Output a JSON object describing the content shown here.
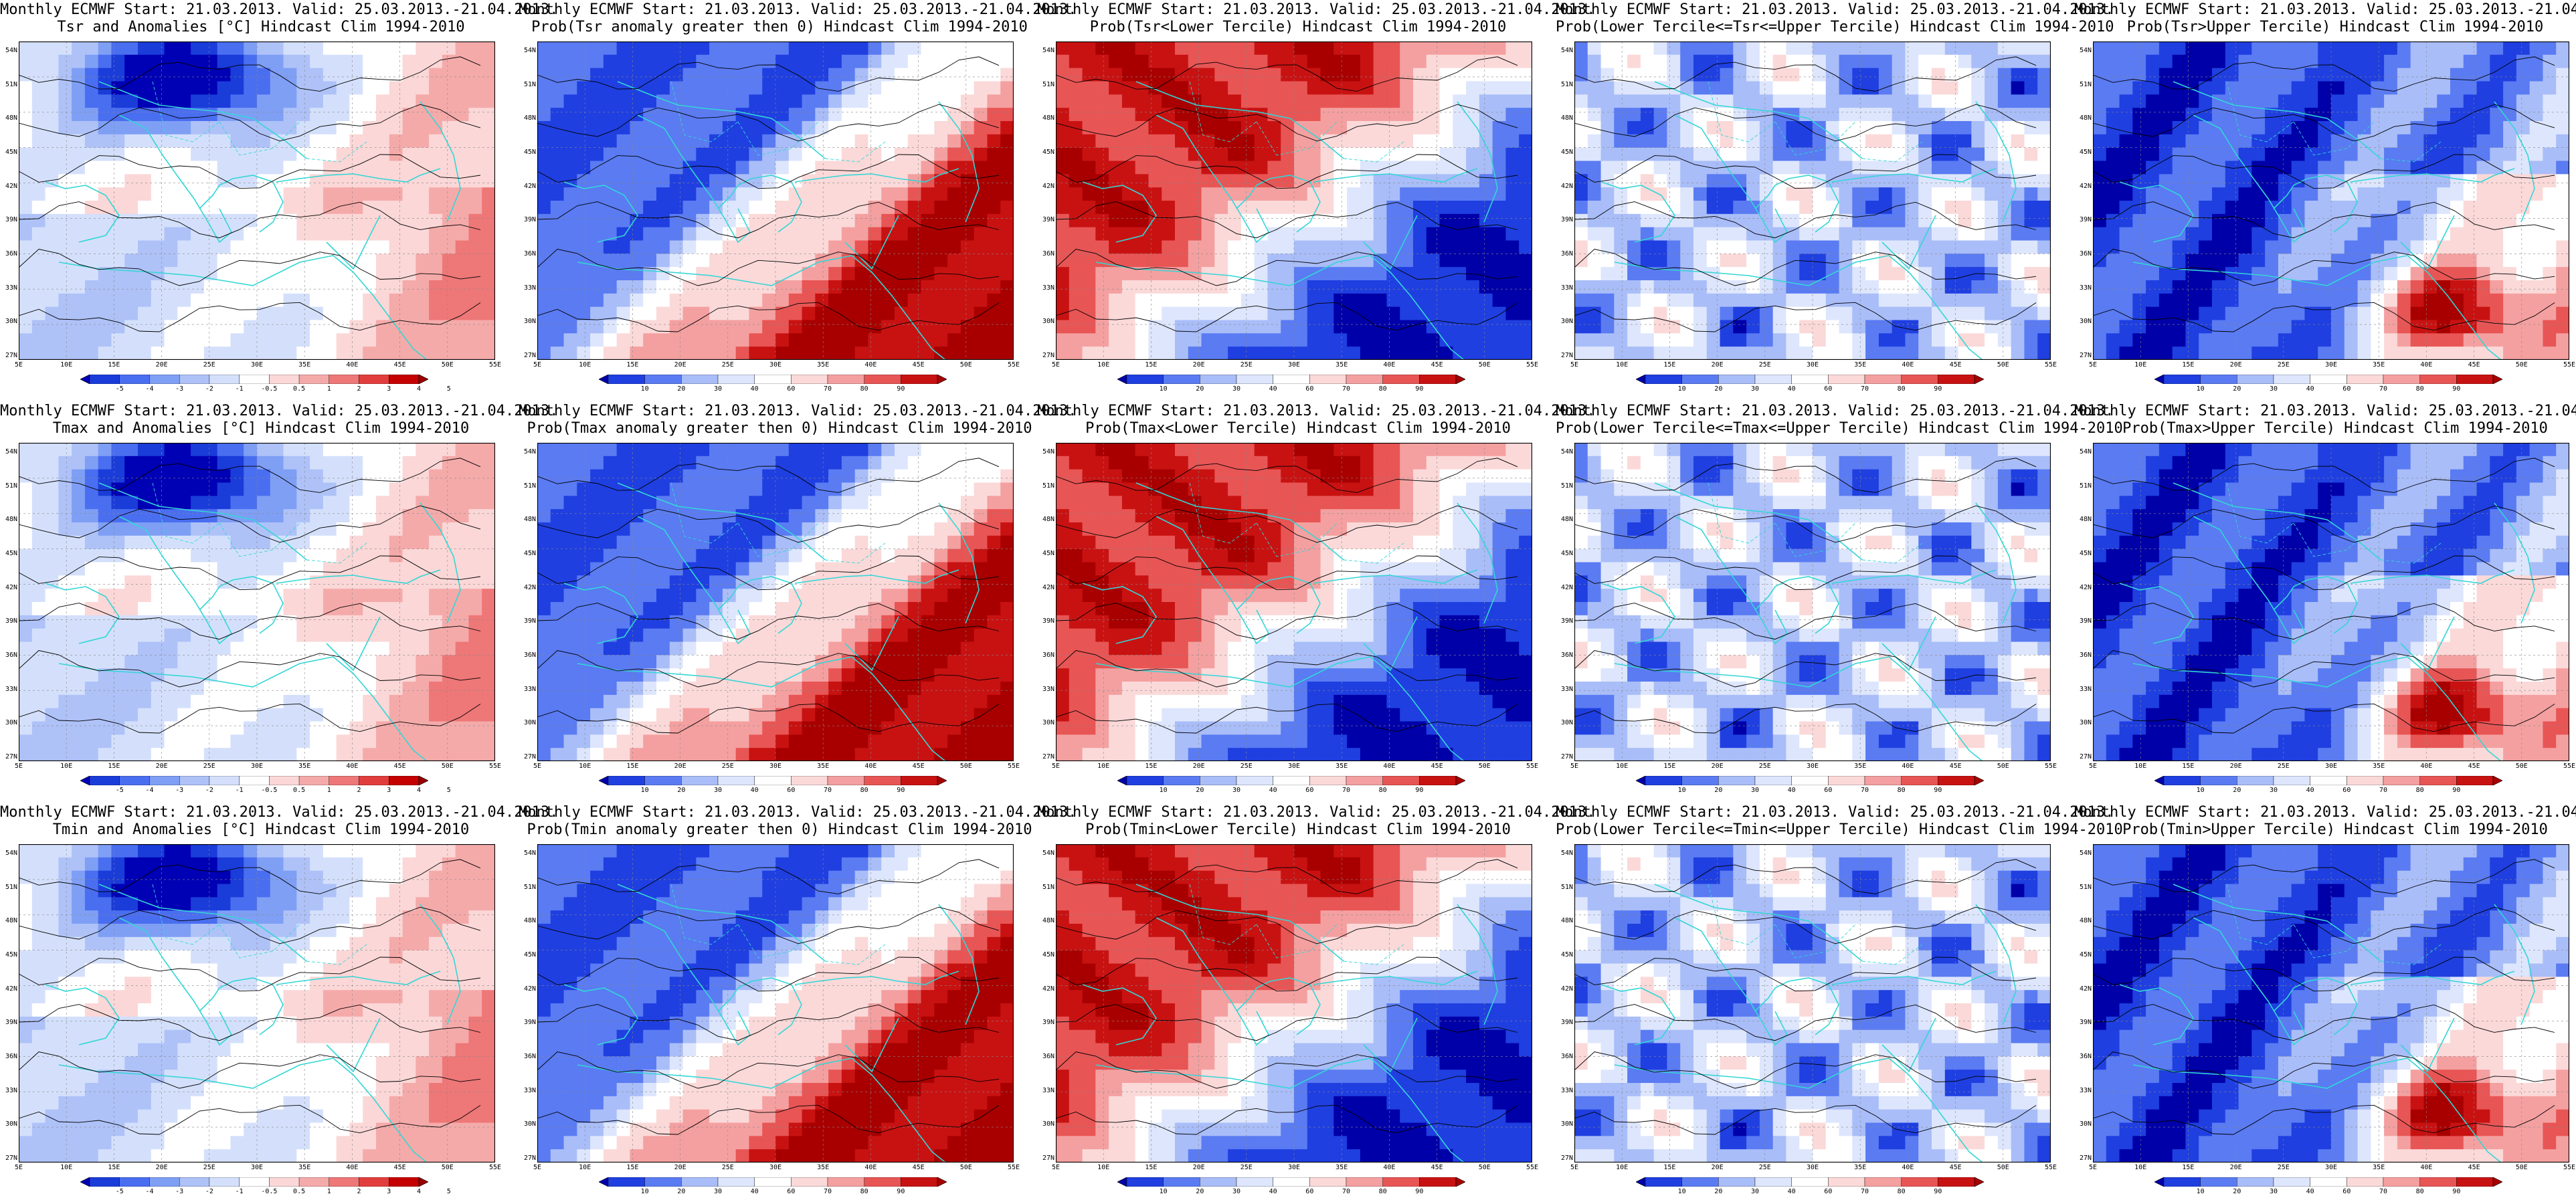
{
  "common": {
    "header": "Monthly ECMWF Start: 21.03.2013. Valid: 25.03.2013.-21.04.2013.",
    "hindcast": "Hindcast Clim 1994-2010",
    "lat_labels": [
      "54N",
      "51N",
      "48N",
      "45N",
      "42N",
      "39N",
      "36N",
      "33N",
      "30N",
      "27N"
    ],
    "lon_labels": [
      "5E",
      "10E",
      "15E",
      "20E",
      "25E",
      "30E",
      "35E",
      "40E",
      "45E",
      "50E",
      "55E"
    ],
    "anomaly_ticks": [
      "-5",
      "-4",
      "-3",
      "-2",
      "-1",
      "-0.5",
      "0.5",
      "1",
      "2",
      "3",
      "4",
      "5"
    ],
    "prob_ticks": [
      "10",
      "20",
      "30",
      "40",
      "60",
      "70",
      "80",
      "90"
    ],
    "colors": {
      "coast": "#33d6d6",
      "contour": "#000000",
      "deep_blue": "#0000a8",
      "deep_red": "#a80000"
    }
  },
  "rows": [
    {
      "variable": "Tsr",
      "panels": [
        {
          "product": "Tsr and Anomalies [°C]",
          "kind": "anomaly",
          "scheme": "mixed-cold-north"
        },
        {
          "product": "Prob(Tsr anomaly greater then 0)",
          "kind": "prob",
          "scheme": "blue-west-red-east"
        },
        {
          "product": "Prob(Tsr<Lower Tercile)",
          "kind": "prob",
          "scheme": "red-west-blue-east"
        },
        {
          "product": "Prob(Lower Tercile<=Tsr<=Upper Tercile)",
          "kind": "prob",
          "scheme": "mostly-blue"
        },
        {
          "product": "Prob(Tsr>Upper Tercile)",
          "kind": "prob",
          "scheme": "blue-with-red-southeast"
        }
      ]
    },
    {
      "variable": "Tmax",
      "panels": [
        {
          "product": "Tmax and Anomalies [°C]",
          "kind": "anomaly",
          "scheme": "mixed-cold-north"
        },
        {
          "product": "Prob(Tmax anomaly greater then 0)",
          "kind": "prob",
          "scheme": "blue-west-red-east"
        },
        {
          "product": "Prob(Tmax<Lower Tercile)",
          "kind": "prob",
          "scheme": "red-west-blue-east"
        },
        {
          "product": "Prob(Lower Tercile<=Tmax<=Upper Tercile)",
          "kind": "prob",
          "scheme": "mostly-blue"
        },
        {
          "product": "Prob(Tmax>Upper Tercile)",
          "kind": "prob",
          "scheme": "blue-with-red-southeast"
        }
      ]
    },
    {
      "variable": "Tmin",
      "panels": [
        {
          "product": "Tmin and Anomalies [°C]",
          "kind": "anomaly",
          "scheme": "mixed-cold-north"
        },
        {
          "product": "Prob(Tmin anomaly greater then 0)",
          "kind": "prob",
          "scheme": "blue-west-red-east"
        },
        {
          "product": "Prob(Tmin<Lower Tercile)",
          "kind": "prob",
          "scheme": "red-west-blue-east"
        },
        {
          "product": "Prob(Lower Tercile<=Tmin<=Upper Tercile)",
          "kind": "prob",
          "scheme": "mostly-blue"
        },
        {
          "product": "Prob(Tmin>Upper Tercile)",
          "kind": "prob",
          "scheme": "blue-with-red-southeast"
        }
      ]
    }
  ]
}
